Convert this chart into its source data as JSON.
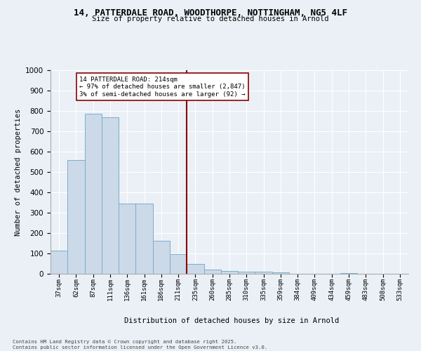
{
  "title_line1": "14, PATTERDALE ROAD, WOODTHORPE, NOTTINGHAM, NG5 4LF",
  "title_line2": "Size of property relative to detached houses in Arnold",
  "xlabel": "Distribution of detached houses by size in Arnold",
  "ylabel": "Number of detached properties",
  "categories": [
    "37sqm",
    "62sqm",
    "87sqm",
    "111sqm",
    "136sqm",
    "161sqm",
    "186sqm",
    "211sqm",
    "235sqm",
    "260sqm",
    "285sqm",
    "310sqm",
    "335sqm",
    "359sqm",
    "384sqm",
    "409sqm",
    "434sqm",
    "459sqm",
    "483sqm",
    "508sqm",
    "533sqm"
  ],
  "values": [
    113,
    560,
    785,
    770,
    345,
    345,
    163,
    96,
    50,
    20,
    13,
    10,
    10,
    8,
    0,
    0,
    0,
    5,
    0,
    0,
    0
  ],
  "bar_color": "#ccd9e8",
  "bar_edge_color": "#7aadce",
  "vline_color": "#8b0000",
  "vline_index": 7,
  "annotation_text": "14 PATTERDALE ROAD: 214sqm\n← 97% of detached houses are smaller (2,847)\n3% of semi-detached houses are larger (92) →",
  "annotation_box_facecolor": "#ffffff",
  "annotation_box_edgecolor": "#8b0000",
  "ylim": [
    0,
    1000
  ],
  "yticks": [
    0,
    100,
    200,
    300,
    400,
    500,
    600,
    700,
    800,
    900,
    1000
  ],
  "bg_color": "#eaf0f6",
  "grid_color": "#ffffff",
  "footer_line1": "Contains HM Land Registry data © Crown copyright and database right 2025.",
  "footer_line2": "Contains public sector information licensed under the Open Government Licence v3.0."
}
